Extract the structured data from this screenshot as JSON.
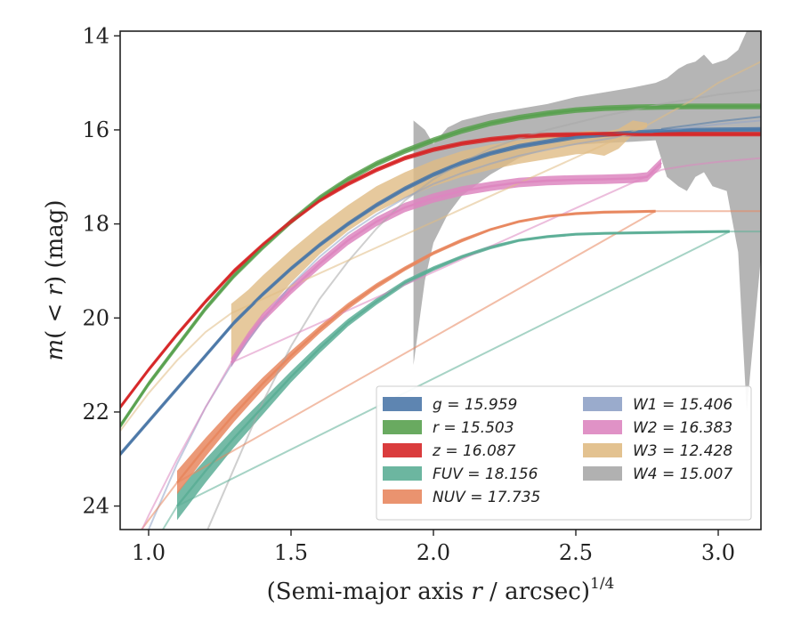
{
  "chart_data": {
    "type": "line",
    "title": "",
    "xlabel": "(Semi-major axis r / arcsec)^1/4",
    "xlabel_parts": {
      "main": "(Semi-major axis ",
      "var": "r",
      "rest": " / arcsec)",
      "sup": "1/4"
    },
    "ylabel": "m(<r) (mag)",
    "ylabel_parts": {
      "main": "m",
      "open": "(",
      "lt": " < ",
      "var": "r",
      "close": ")",
      "unit": " (mag)"
    },
    "xlim": [
      0.9,
      3.15
    ],
    "ylim": [
      24.5,
      13.9
    ],
    "y_inverted": true,
    "xticks": [
      1.0,
      1.5,
      2.0,
      2.5,
      3.0
    ],
    "xtick_labels": [
      "1.0",
      "1.5",
      "2.0",
      "2.5",
      "3.0"
    ],
    "yticks": [
      14,
      16,
      18,
      20,
      22,
      24
    ],
    "ytick_labels": [
      "14",
      "16",
      "18",
      "20",
      "22",
      "24"
    ],
    "grid": false,
    "legend_position": "lower-right",
    "legend_columns": 2,
    "series": [
      {
        "name": "g",
        "value": "15.959",
        "color": "#4c78a8",
        "x": [
          0.9,
          1.0,
          1.1,
          1.2,
          1.3,
          1.4,
          1.5,
          1.6,
          1.7,
          1.8,
          1.9,
          2.0,
          2.1,
          2.2,
          2.3,
          2.4,
          2.5,
          2.6,
          2.7,
          2.8,
          2.9,
          3.0,
          3.15
        ],
        "y": [
          22.9,
          22.2,
          21.5,
          20.8,
          20.1,
          19.5,
          18.95,
          18.45,
          18.0,
          17.6,
          17.25,
          16.95,
          16.7,
          16.5,
          16.35,
          16.25,
          16.15,
          16.1,
          16.06,
          16.03,
          16.01,
          16.0,
          15.99
        ],
        "y_err": 0.05,
        "extrapolation": {
          "x": [
            2.8,
            2.9,
            3.0,
            3.15
          ],
          "y": [
            15.98,
            15.9,
            15.82,
            15.72
          ]
        }
      },
      {
        "name": "r",
        "value": "15.503",
        "color": "#59a14f",
        "x": [
          0.9,
          1.0,
          1.1,
          1.2,
          1.3,
          1.4,
          1.5,
          1.6,
          1.7,
          1.8,
          1.9,
          2.0,
          2.1,
          2.2,
          2.3,
          2.4,
          2.5,
          2.6,
          2.7,
          2.8,
          2.9,
          3.0,
          3.15
        ],
        "y": [
          22.3,
          21.4,
          20.6,
          19.8,
          19.1,
          18.5,
          17.95,
          17.45,
          17.05,
          16.72,
          16.45,
          16.22,
          16.02,
          15.86,
          15.74,
          15.65,
          15.58,
          15.54,
          15.52,
          15.51,
          15.5,
          15.5,
          15.5
        ],
        "y_err": 0.06
      },
      {
        "name": "z",
        "value": "16.087",
        "color": "#d62728",
        "x": [
          0.9,
          1.0,
          1.1,
          1.2,
          1.3,
          1.4,
          1.5,
          1.6,
          1.7,
          1.8,
          1.9,
          2.0,
          2.1,
          2.2,
          2.3,
          2.4,
          2.5,
          2.6,
          2.7,
          2.8,
          2.9,
          3.0,
          3.15
        ],
        "y": [
          21.9,
          21.1,
          20.35,
          19.65,
          19.0,
          18.45,
          17.95,
          17.5,
          17.15,
          16.85,
          16.6,
          16.42,
          16.29,
          16.2,
          16.14,
          16.11,
          16.1,
          16.09,
          16.09,
          16.09,
          16.09,
          16.09,
          16.09
        ],
        "y_err": 0.05
      },
      {
        "name": "FUV",
        "value": "18.156",
        "color": "#5cae96",
        "x": [
          1.1,
          1.2,
          1.3,
          1.4,
          1.5,
          1.6,
          1.7,
          1.8,
          1.9,
          2.0,
          2.1,
          2.2,
          2.3,
          2.4,
          2.5,
          2.6,
          2.7,
          2.8,
          2.9,
          3.04
        ],
        "y": [
          24.0,
          23.25,
          22.55,
          21.9,
          21.25,
          20.65,
          20.1,
          19.65,
          19.25,
          18.95,
          18.7,
          18.5,
          18.35,
          18.27,
          18.22,
          18.2,
          18.19,
          18.18,
          18.17,
          18.16
        ],
        "y_err": [
          0.3,
          0.25,
          0.2,
          0.16,
          0.12,
          0.1,
          0.08,
          0.07,
          0.06,
          0.05,
          0.04,
          0.04,
          0.03,
          0.03,
          0.03,
          0.03,
          0.03,
          0.03,
          0.03,
          0.03
        ],
        "extrapolation": {
          "x": [
            0.9,
            1.0,
            1.1,
            3.04,
            3.15
          ],
          "y": [
            26.0,
            25.0,
            24.0,
            18.16,
            18.16
          ]
        }
      },
      {
        "name": "NUV",
        "value": "17.735",
        "color": "#e8875f",
        "x": [
          1.1,
          1.2,
          1.3,
          1.4,
          1.5,
          1.6,
          1.7,
          1.8,
          1.9,
          2.0,
          2.1,
          2.2,
          2.3,
          2.4,
          2.5,
          2.6,
          2.7,
          2.78
        ],
        "y": [
          23.5,
          22.75,
          22.05,
          21.4,
          20.8,
          20.25,
          19.75,
          19.32,
          18.95,
          18.62,
          18.35,
          18.12,
          17.95,
          17.84,
          17.78,
          17.75,
          17.74,
          17.73
        ],
        "y_err": [
          0.25,
          0.2,
          0.16,
          0.13,
          0.1,
          0.08,
          0.07,
          0.06,
          0.05,
          0.04,
          0.04,
          0.03,
          0.03,
          0.03,
          0.03,
          0.03,
          0.03,
          0.03
        ],
        "extrapolation": {
          "x": [
            0.9,
            1.0,
            1.1,
            2.78,
            3.15
          ],
          "y": [
            25.1,
            24.3,
            23.5,
            17.73,
            17.73
          ]
        }
      },
      {
        "name": "W1",
        "value": "15.406",
        "color": "#8fa2c6",
        "x": [],
        "y": [],
        "extrapolation": {
          "x": [
            0.9,
            1.0,
            1.1,
            1.2,
            1.3,
            1.4,
            1.5,
            1.6,
            1.7,
            1.8,
            1.9,
            2.0,
            2.1,
            2.2,
            2.3,
            2.4,
            2.5,
            2.6,
            2.7,
            2.8,
            2.9,
            3.0,
            3.15
          ],
          "y": [
            26.2,
            24.5,
            23.1,
            21.9,
            20.9,
            20.05,
            19.3,
            18.7,
            18.2,
            17.8,
            17.45,
            17.15,
            16.92,
            16.72,
            16.55,
            16.42,
            16.3,
            16.2,
            16.1,
            16.02,
            15.95,
            15.88,
            15.8
          ]
        }
      },
      {
        "name": "W2",
        "value": "16.383",
        "color": "#dd86c0",
        "x": [
          1.29,
          1.35,
          1.4,
          1.5,
          1.6,
          1.7,
          1.8,
          1.9,
          2.0,
          2.1,
          2.2,
          2.3,
          2.4,
          2.5,
          2.6,
          2.7,
          2.75,
          2.8
        ],
        "y": [
          20.95,
          20.4,
          20.0,
          19.4,
          18.85,
          18.35,
          17.95,
          17.65,
          17.45,
          17.3,
          17.2,
          17.12,
          17.08,
          17.06,
          17.05,
          17.03,
          17.0,
          16.7
        ],
        "y_err": 0.1,
        "extrapolation": {
          "x": [
            0.9,
            1.0,
            1.1,
            1.2,
            1.29,
            2.8,
            2.9,
            3.0,
            3.15
          ],
          "y": [
            25.5,
            24.2,
            23.0,
            21.9,
            20.95,
            16.85,
            16.75,
            16.68,
            16.6
          ]
        }
      },
      {
        "name": "W3",
        "value": "12.428",
        "color": "#e0bb84",
        "x": [
          1.29,
          1.35,
          1.4,
          1.5,
          1.6,
          1.7,
          1.8,
          1.9,
          2.0,
          2.1,
          2.2,
          2.3,
          2.4,
          2.5,
          2.55,
          2.6,
          2.65,
          2.7,
          2.75
        ],
        "y_low": [
          20.9,
          20.4,
          19.95,
          19.25,
          18.65,
          18.15,
          17.75,
          17.45,
          17.2,
          17.0,
          16.85,
          16.72,
          16.62,
          16.52,
          16.5,
          16.55,
          16.4,
          16.1,
          15.95
        ],
        "y_high": [
          19.7,
          19.4,
          19.1,
          18.55,
          18.05,
          17.6,
          17.2,
          16.9,
          16.65,
          16.45,
          16.32,
          16.22,
          16.14,
          16.05,
          16.02,
          16.05,
          15.98,
          15.8,
          15.85
        ],
        "extrapolation": {
          "x": [
            0.9,
            1.0,
            1.1,
            1.2,
            1.29,
            2.75,
            2.9,
            3.0,
            3.15
          ],
          "y": [
            22.4,
            21.6,
            20.9,
            20.3,
            19.9,
            15.9,
            15.4,
            15.0,
            14.55
          ]
        }
      },
      {
        "name": "W4",
        "value": "15.007",
        "color": "#a8a8a8",
        "x": [
          1.93,
          1.97,
          2.0,
          2.05,
          2.1,
          2.2,
          2.3,
          2.4,
          2.5,
          2.6,
          2.7,
          2.78,
          2.82,
          2.86,
          2.89,
          2.92,
          2.95,
          2.98,
          3.03,
          3.07,
          3.1,
          3.15
        ],
        "y_low": [
          21.0,
          19.2,
          18.4,
          17.8,
          17.4,
          16.95,
          16.6,
          16.4,
          16.32,
          16.28,
          16.25,
          16.22,
          17.0,
          17.2,
          17.3,
          17.0,
          16.9,
          17.2,
          17.3,
          18.6,
          22.0,
          18.7
        ],
        "y_high": [
          15.8,
          16.0,
          16.3,
          15.95,
          15.8,
          15.65,
          15.55,
          15.45,
          15.3,
          15.2,
          15.1,
          15.0,
          14.9,
          14.7,
          14.6,
          14.55,
          14.4,
          14.6,
          14.5,
          14.3,
          13.9,
          13.9
        ],
        "extrapolation": {
          "x": [
            1.2,
            1.3,
            1.4,
            1.5,
            1.6,
            1.7,
            1.8,
            1.9,
            2.0,
            2.1,
            2.2,
            2.3,
            2.4,
            2.5,
            2.6,
            2.7,
            2.8,
            2.9,
            3.0,
            3.15
          ],
          "y": [
            24.6,
            23.2,
            21.8,
            20.6,
            19.6,
            18.8,
            18.1,
            17.5,
            17.05,
            16.7,
            16.4,
            16.18,
            16.0,
            15.85,
            15.7,
            15.58,
            15.45,
            15.35,
            15.25,
            15.15
          ]
        }
      }
    ]
  }
}
